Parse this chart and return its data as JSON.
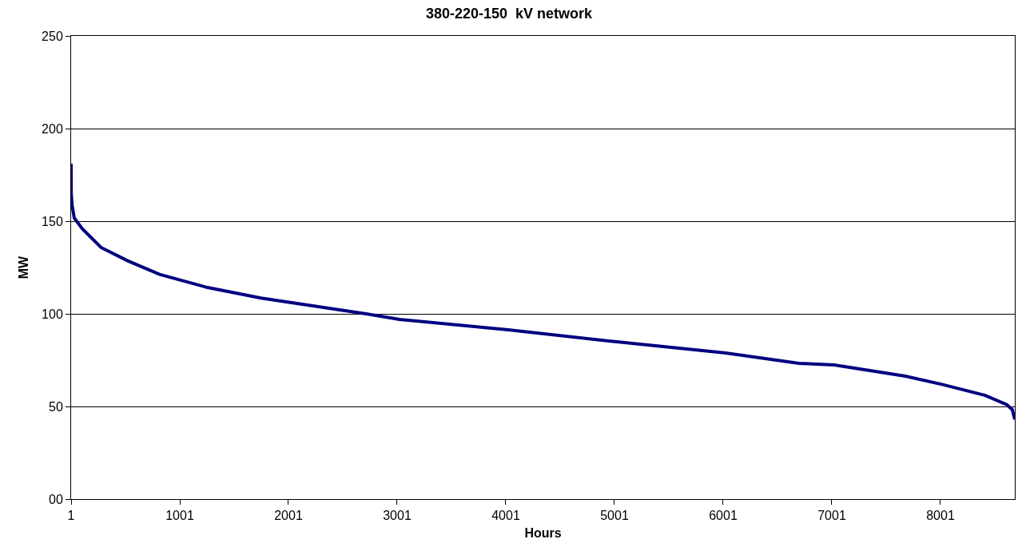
{
  "chart_data": {
    "type": "line",
    "title": "380-220-150  kV network",
    "xlabel": "Hours",
    "ylabel": "MW",
    "x": [
      1,
      2,
      10,
      30,
      105,
      277,
      522,
      816,
      1257,
      1748,
      2238,
      2728,
      3023,
      4023,
      5023,
      6023,
      6699,
      7023,
      7677,
      8023,
      8412,
      8611,
      8662,
      8685
    ],
    "series": [
      {
        "color": "#000080",
        "values": [
          181,
          165,
          158.6,
          151.7,
          145.8,
          135.8,
          128.6,
          121.3,
          114.2,
          108.5,
          104.2,
          99.9,
          97,
          91.4,
          84.9,
          78.9,
          73.3,
          72.4,
          66.4,
          61.8,
          56,
          51,
          48.3,
          43
        ]
      }
    ],
    "xlim": [
      1,
      8685
    ],
    "xticks": [
      1,
      1001,
      2001,
      3001,
      4001,
      5001,
      6001,
      7001,
      8001
    ],
    "ylim": [
      0,
      250
    ],
    "yticks": [
      {
        "value": 0,
        "label": "00"
      },
      50,
      100,
      150,
      200,
      250
    ],
    "grid": "y",
    "marker": "none",
    "line_style": "solid"
  }
}
